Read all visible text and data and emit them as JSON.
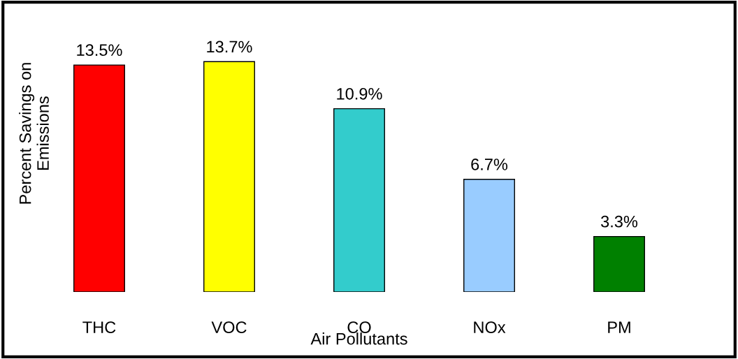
{
  "chart_data": {
    "type": "bar",
    "xlabel": "Air Pollutants",
    "ylabel": "Percent Savings on\nEmissions",
    "categories": [
      "THC",
      "VOC",
      "CO",
      "NOx",
      "PM"
    ],
    "values": [
      13.5,
      13.7,
      10.9,
      6.7,
      3.3
    ],
    "colors": [
      "#ff0000",
      "#ffff00",
      "#33cccc",
      "#99ccff",
      "#008000"
    ],
    "value_labels": [
      "13.5%",
      "13.7%",
      "10.9%",
      "6.7%",
      "3.3%"
    ],
    "tick_labels": "x",
    "grid": false,
    "legend": false
  }
}
